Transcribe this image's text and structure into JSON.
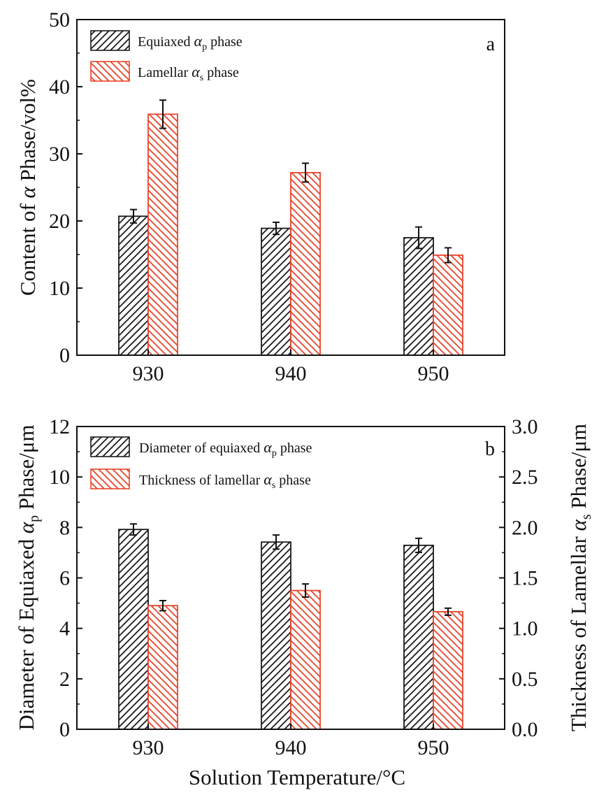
{
  "colors": {
    "series_a": "#1a1a1a",
    "series_b": "#e8442a",
    "axis": "#111111"
  },
  "chart_data": [
    {
      "type": "bar",
      "panel_label": "a",
      "categories": [
        "930",
        "940",
        "950"
      ],
      "ylabel_pre": "Content of ",
      "ylabel_greek": "α",
      "ylabel_post": " Phase/vol%",
      "ylim": [
        0,
        50
      ],
      "yticks": [
        "0",
        "10",
        "20",
        "30",
        "40",
        "50"
      ],
      "legend_position": "top-left",
      "series": [
        {
          "legend_pre": "Equiaxed ",
          "legend_greek": "α",
          "legend_sub": "p",
          "legend_post": " phase",
          "values": [
            20.7,
            18.9,
            17.5
          ],
          "errors": [
            1.0,
            0.9,
            1.6
          ],
          "color": "#1a1a1a",
          "hatch": "forward"
        },
        {
          "legend_pre": "Lamellar ",
          "legend_greek": "α",
          "legend_sub": "s",
          "legend_post": " phase",
          "values": [
            35.9,
            27.2,
            14.9
          ],
          "errors": [
            2.1,
            1.4,
            1.1
          ],
          "color": "#e8442a",
          "hatch": "backward"
        }
      ]
    },
    {
      "type": "bar",
      "panel_label": "b",
      "categories": [
        "930",
        "940",
        "950"
      ],
      "xlabel": "Solution Temperature/°C",
      "ylabel_left_pre": "Diameter of Equiaxed ",
      "ylabel_left_greek": "α",
      "ylabel_left_sub": "p",
      "ylabel_left_post": " Phase/μm",
      "ylabel_right_pre": "Thickness of Lamellar ",
      "ylabel_right_greek": "α",
      "ylabel_right_sub": "s",
      "ylabel_right_post": " Phase/μm",
      "ylim_left": [
        0,
        12
      ],
      "ylim_right": [
        0,
        3
      ],
      "yticks_left": [
        "0",
        "2",
        "4",
        "6",
        "8",
        "10",
        "12"
      ],
      "yticks_right": [
        "0.0",
        "0.5",
        "1.0",
        "1.5",
        "2.0",
        "2.5",
        "3.0"
      ],
      "legend_position": "top-left",
      "series": [
        {
          "legend_pre": "Diameter of equiaxed ",
          "legend_greek": "α",
          "legend_sub": "p",
          "legend_post": " phase",
          "axis": "left",
          "values": [
            7.92,
            7.42,
            7.29
          ],
          "errors": [
            0.22,
            0.28,
            0.28
          ],
          "color": "#1a1a1a",
          "hatch": "forward"
        },
        {
          "legend_pre": "Thickness of lamellar ",
          "legend_greek": "α",
          "legend_sub": "s",
          "legend_post": " phase",
          "axis": "right",
          "values": [
            1.225,
            1.375,
            1.165
          ],
          "errors": [
            0.05,
            0.065,
            0.035
          ],
          "color": "#e8442a",
          "hatch": "backward"
        }
      ]
    }
  ]
}
